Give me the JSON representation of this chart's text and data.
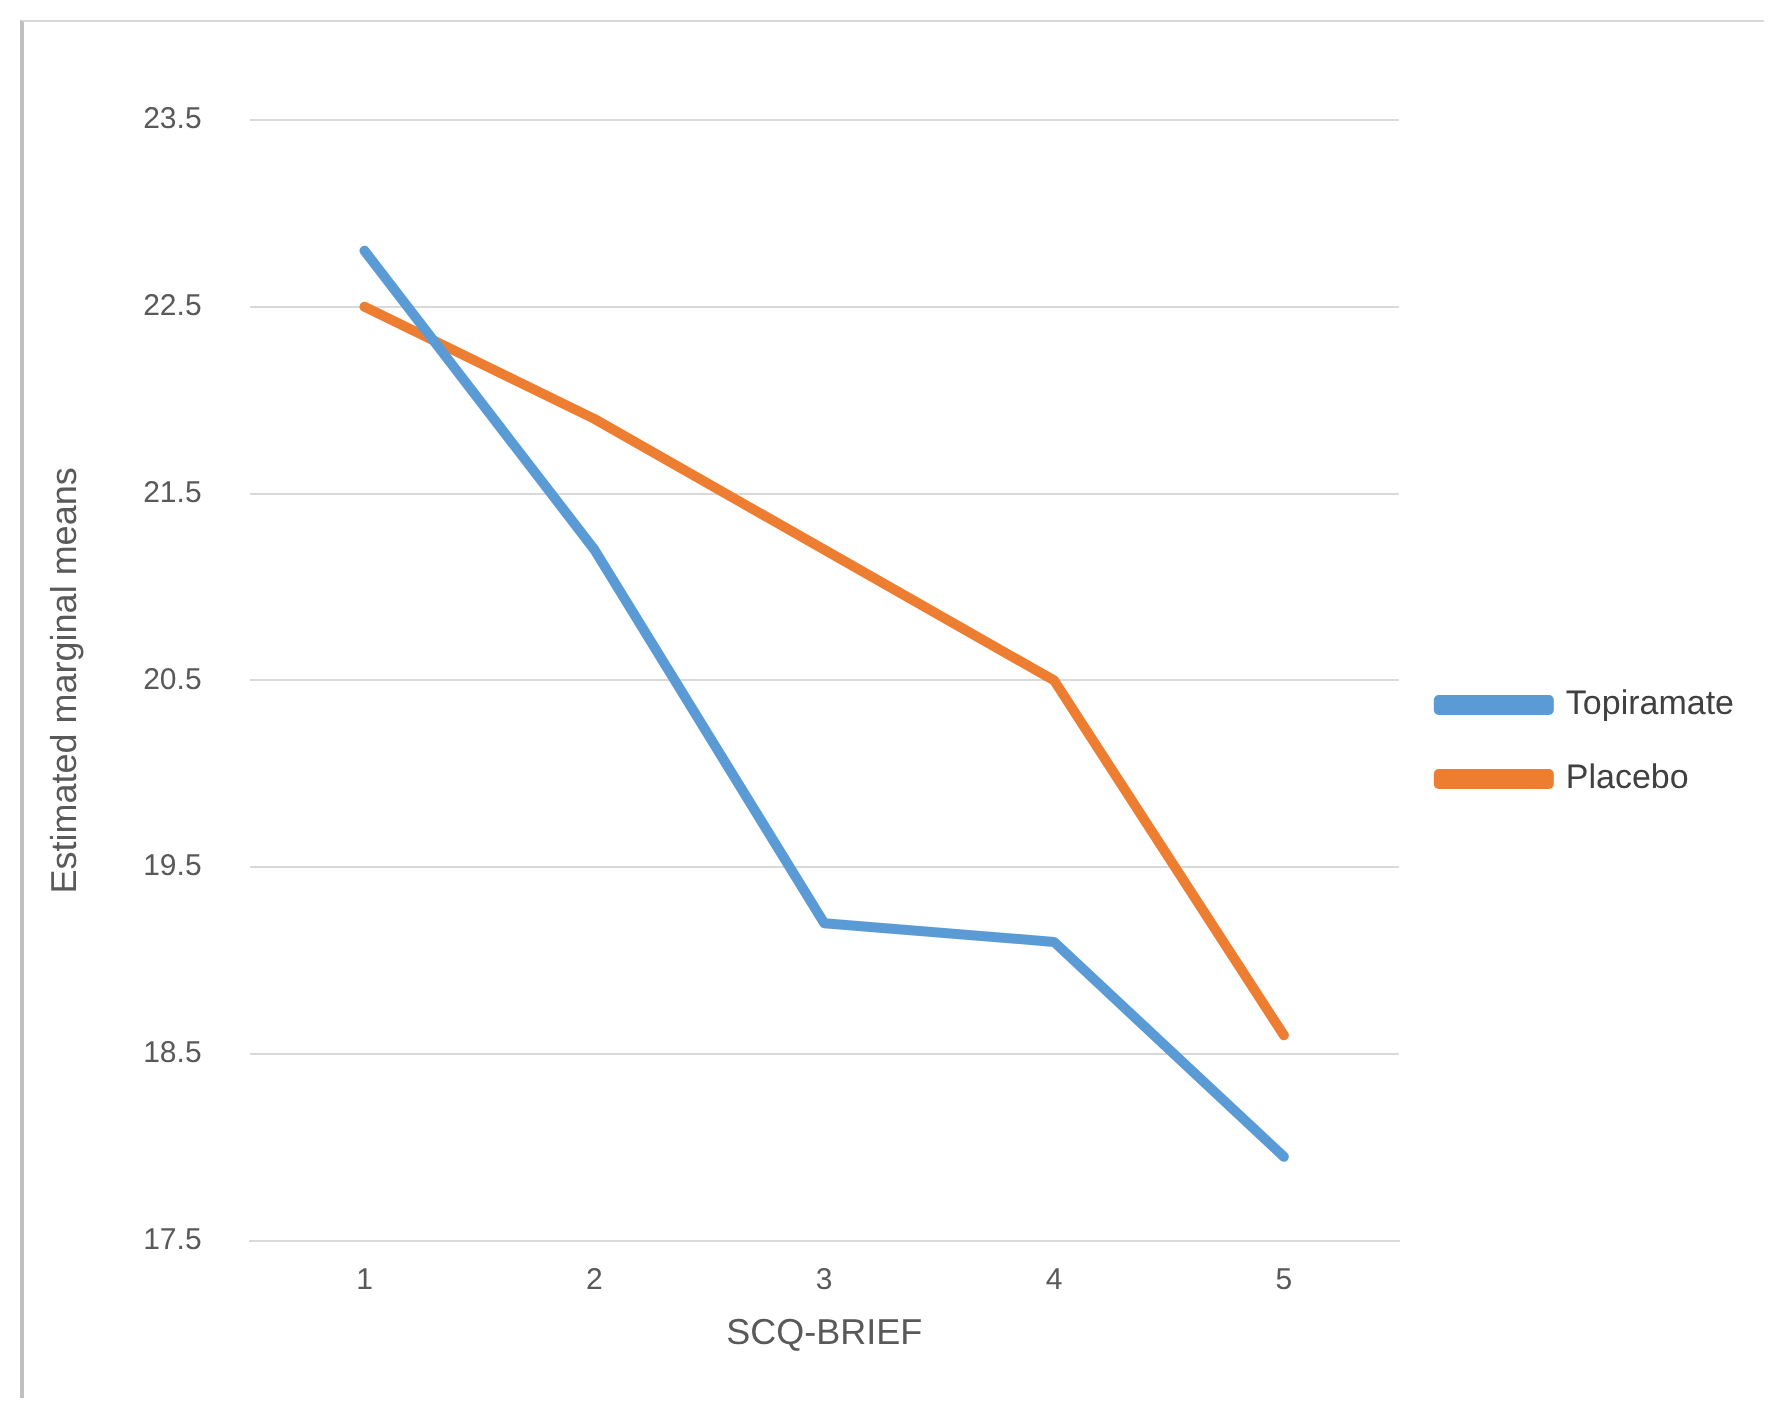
{
  "chart_data": {
    "type": "line",
    "xlabel": "SCQ-BRIEF",
    "ylabel": "Estimated marginal means",
    "categories": [
      "1",
      "2",
      "3",
      "4",
      "5"
    ],
    "series": [
      {
        "name": "Topiramate",
        "color": "#5b9bd5",
        "values": [
          22.8,
          21.2,
          19.2,
          19.1,
          17.95
        ]
      },
      {
        "name": "Placebo",
        "color": "#ed7d31",
        "values": [
          22.5,
          21.9,
          21.2,
          20.5,
          18.6
        ]
      }
    ],
    "ylim": [
      17.5,
      23.5
    ],
    "yticks": [
      17.5,
      18.5,
      19.5,
      20.5,
      21.5,
      22.5,
      23.5
    ],
    "grid": "y",
    "legend": "right",
    "marker": "none",
    "line_style": "solid"
  }
}
